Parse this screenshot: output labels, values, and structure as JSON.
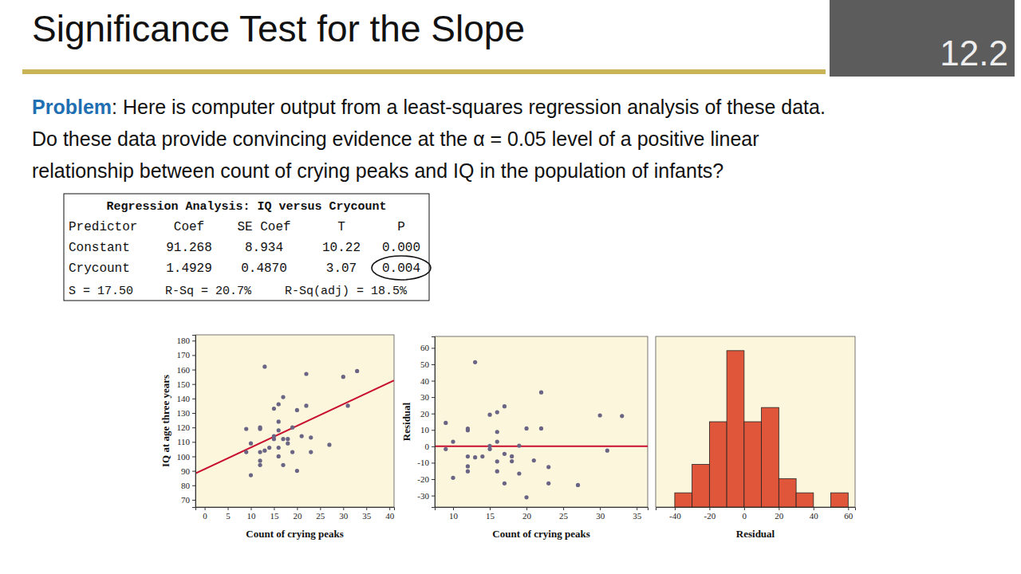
{
  "slide": {
    "title": "Significance Test for the Slope",
    "problem_label": "Problem",
    "problem_text": ": Here is computer output from a least-squares regression analysis of these data.",
    "question_lines": [
      "Do these data provide convincing evidence at the α = 0.05 level of a positive linear",
      "relationship between count of crying peaks and IQ in the population of infants?"
    ],
    "overlay_label": "12.2"
  },
  "table": {
    "title": "Regression Analysis: IQ versus Crycount",
    "header": [
      "Predictor",
      "Coef",
      "SE Coef",
      "T",
      "P"
    ],
    "rows": [
      [
        "Constant",
        "91.268",
        "8.934",
        "10.22",
        "0.000"
      ],
      [
        "Crycount",
        "1.4929",
        "0.4870",
        "3.07",
        "0.004"
      ]
    ],
    "footer": [
      "S = 17.50",
      "R-Sq = 20.7%",
      "R-Sq(adj) = 18.5%"
    ]
  },
  "chart_data": [
    {
      "type": "scatter",
      "x_label": "Count of crying peaks",
      "y_label": "IQ at age three years",
      "x": [
        9,
        9,
        10,
        10,
        12,
        12,
        12,
        12,
        12,
        13,
        13,
        14,
        15,
        15,
        15,
        16,
        16,
        16,
        16,
        16,
        17,
        17,
        18,
        18,
        19,
        19,
        20,
        20,
        21,
        22,
        22,
        23,
        23,
        27,
        30,
        31,
        33,
        17
      ],
      "values": [
        103,
        119,
        87,
        109,
        94,
        97,
        103,
        119,
        120,
        162,
        104,
        106,
        112,
        114,
        133,
        100,
        106,
        118,
        124,
        136,
        94,
        141,
        109,
        112,
        103,
        120,
        90,
        132,
        114,
        135,
        157,
        103,
        113,
        108,
        155,
        135,
        159,
        112
      ],
      "color": "#6b6585",
      "marker": "circle",
      "line": {
        "intercept": 91.268,
        "slope": 1.4929
      },
      "xlim": [
        -2,
        41
      ],
      "xticks": [
        0,
        5,
        10,
        15,
        20,
        25,
        30,
        35,
        40
      ],
      "ylim": [
        65,
        184
      ],
      "yticks": [
        70,
        80,
        90,
        100,
        110,
        120,
        130,
        140,
        150,
        160,
        170,
        180
      ],
      "grid": false
    },
    {
      "type": "scatter",
      "x_label": "Count of crying peaks",
      "y_label": "Residual",
      "x": [
        9,
        9,
        10,
        10,
        12,
        12,
        12,
        12,
        12,
        13,
        13,
        14,
        15,
        15,
        15,
        16,
        16,
        16,
        16,
        16,
        17,
        17,
        18,
        18,
        19,
        19,
        20,
        20,
        21,
        22,
        22,
        23,
        23,
        27,
        30,
        31,
        33,
        17
      ],
      "values": [
        -1.7,
        14.3,
        -19.2,
        2.8,
        -15.2,
        -12.2,
        -6.2,
        9.8,
        10.8,
        51.3,
        -6.7,
        -6.2,
        -1.7,
        0.3,
        19.3,
        -15.2,
        -9.2,
        2.8,
        8.8,
        20.8,
        -22.6,
        24.4,
        -9.1,
        -6.1,
        -16.6,
        0.4,
        -31.1,
        10.9,
        -8.6,
        10.9,
        32.9,
        -22.6,
        -12.6,
        -23.6,
        18.9,
        -2.6,
        18.5,
        -4.6
      ],
      "color": "#6b6585",
      "marker": "circle",
      "hline": 0,
      "xlim": [
        7.5,
        36.5
      ],
      "xticks": [
        10,
        15,
        20,
        25,
        30,
        35
      ],
      "ylim": [
        -37,
        67
      ],
      "yticks": [
        -30,
        -20,
        -10,
        0,
        10,
        20,
        30,
        40,
        50,
        60
      ],
      "grid": false
    },
    {
      "type": "histogram",
      "x_label": "Residual",
      "bins": [
        -40,
        -30,
        -20,
        -10,
        0,
        10,
        20,
        30,
        40,
        50,
        60
      ],
      "values": [
        1,
        3,
        6,
        11,
        6,
        7,
        2,
        1,
        0,
        1
      ],
      "color": "#e0563b",
      "xlim": [
        -51,
        64
      ],
      "xticks": [
        -40,
        -20,
        0,
        20,
        40,
        60
      ],
      "ylim": [
        0,
        12
      ],
      "tick_labels": "x",
      "grid": false
    }
  ]
}
